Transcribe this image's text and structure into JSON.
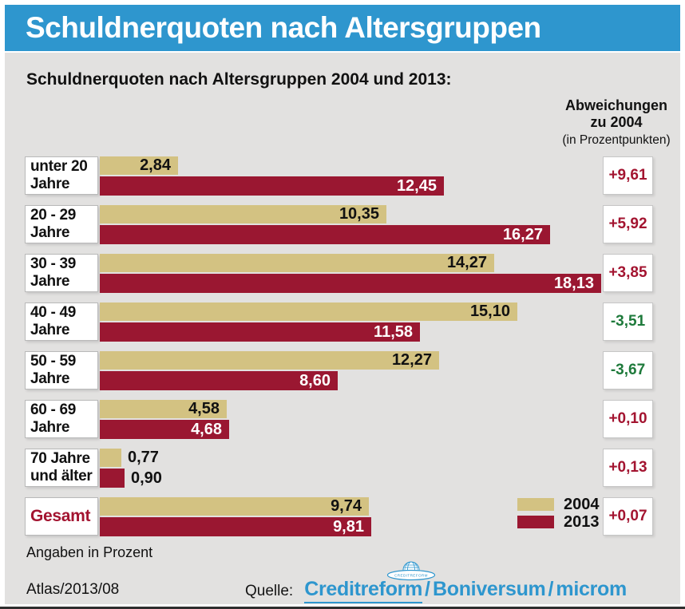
{
  "title": "Schuldnerquoten nach Altersgruppen",
  "subtitle": "Schuldnerquoten nach Altersgruppen 2004 und 2013:",
  "deviation_header": {
    "line1": "Abweichungen",
    "line2": "zu 2004",
    "line3": "(in Prozentpunkten)"
  },
  "chart_data": {
    "type": "bar",
    "orientation": "horizontal",
    "title": "Schuldnerquoten nach Altersgruppen 2004 und 2013",
    "unit_note": "Angaben in Prozent",
    "value_axis": {
      "unit": "Prozent",
      "approx_max": 18.13
    },
    "series": [
      {
        "name": "2004",
        "color": "#D3C282"
      },
      {
        "name": "2013",
        "color": "#9A1731"
      }
    ],
    "rows": [
      {
        "label": [
          "unter 20",
          "Jahre"
        ],
        "values": [
          2.84,
          12.45
        ],
        "value_labels": [
          "2,84",
          "12,45"
        ],
        "deviation": "+9,61"
      },
      {
        "label": [
          "20 - 29",
          "Jahre"
        ],
        "values": [
          10.35,
          16.27
        ],
        "value_labels": [
          "10,35",
          "16,27"
        ],
        "deviation": "+5,92"
      },
      {
        "label": [
          "30 - 39",
          "Jahre"
        ],
        "values": [
          14.27,
          18.13
        ],
        "value_labels": [
          "14,27",
          "18,13"
        ],
        "deviation": "+3,85"
      },
      {
        "label": [
          "40 - 49",
          "Jahre"
        ],
        "values": [
          15.1,
          11.58
        ],
        "value_labels": [
          "15,10",
          "11,58"
        ],
        "deviation": "-3,51"
      },
      {
        "label": [
          "50 - 59",
          "Jahre"
        ],
        "values": [
          12.27,
          8.6
        ],
        "value_labels": [
          "12,27",
          "8,60"
        ],
        "deviation": "-3,67"
      },
      {
        "label": [
          "60 - 69",
          "Jahre"
        ],
        "values": [
          4.58,
          4.68
        ],
        "value_labels": [
          "4,58",
          "4,68"
        ],
        "deviation": "+0,10"
      },
      {
        "label": [
          "70 Jahre",
          "und älter"
        ],
        "values": [
          0.77,
          0.9
        ],
        "value_labels": [
          "0,77",
          "0,90"
        ],
        "deviation": "+0,13"
      },
      {
        "label": [
          "Gesamt"
        ],
        "values": [
          9.74,
          9.81
        ],
        "value_labels": [
          "9,74",
          "9,81"
        ],
        "deviation": "+0,07",
        "emphasis": true
      }
    ],
    "legend_position": "bottom-right"
  },
  "colors": {
    "header_blue": "#2E96CE",
    "canvas_gray": "#E2E1E0",
    "bar_2004_tan": "#D3C282",
    "bar_2013_red": "#9A1731",
    "deviation_positive": "#A31430",
    "deviation_negative": "#1E7A3B",
    "brand_blue": "#2E96CE"
  },
  "footer": {
    "atlas": "Atlas/2013/08",
    "source_label": "Quelle:",
    "brands": [
      "Creditreform",
      "Boniversum",
      "microm"
    ],
    "separator": "/",
    "logo_banner_text": "CREDITREFORM"
  }
}
